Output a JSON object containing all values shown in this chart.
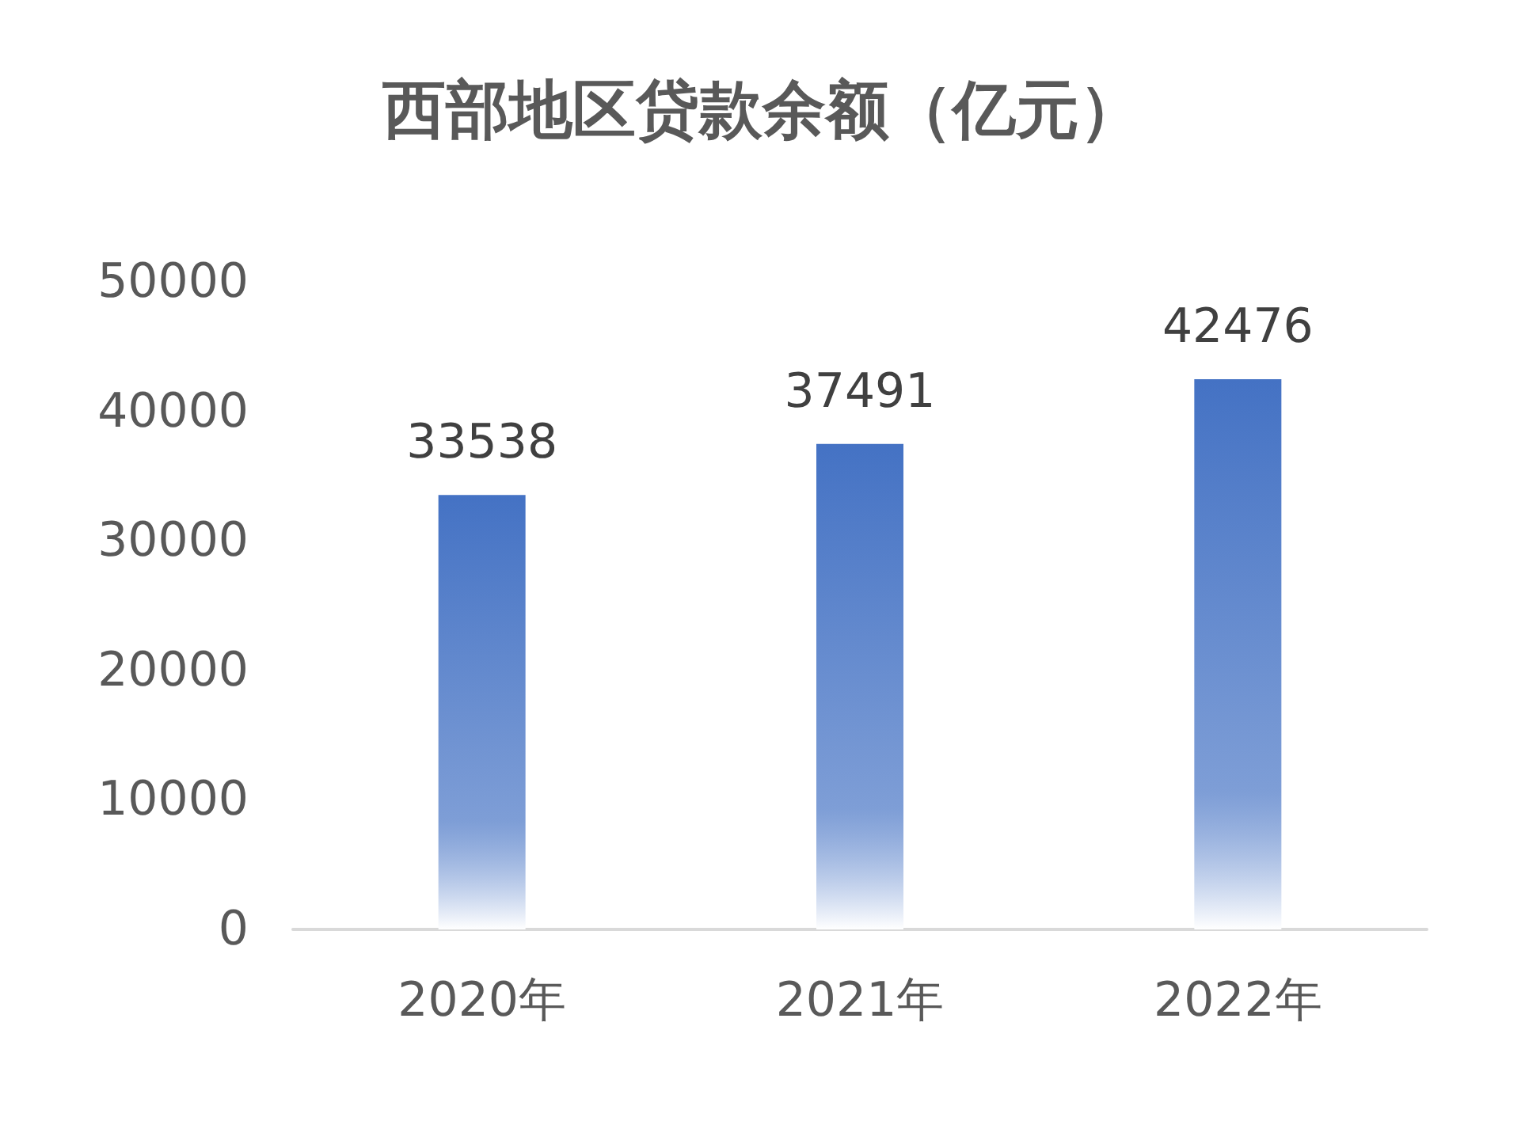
{
  "chart_data": {
    "type": "bar",
    "title": "西部地区贷款余额（亿元）",
    "categories": [
      "2020年",
      "2021年",
      "2022年"
    ],
    "values": [
      33538,
      37491,
      42476
    ],
    "color": "#4472c4",
    "ylim": [
      0,
      50000
    ],
    "yticks": [
      0,
      10000,
      20000,
      30000,
      40000,
      50000
    ],
    "grid": false,
    "data_labels": true
  }
}
